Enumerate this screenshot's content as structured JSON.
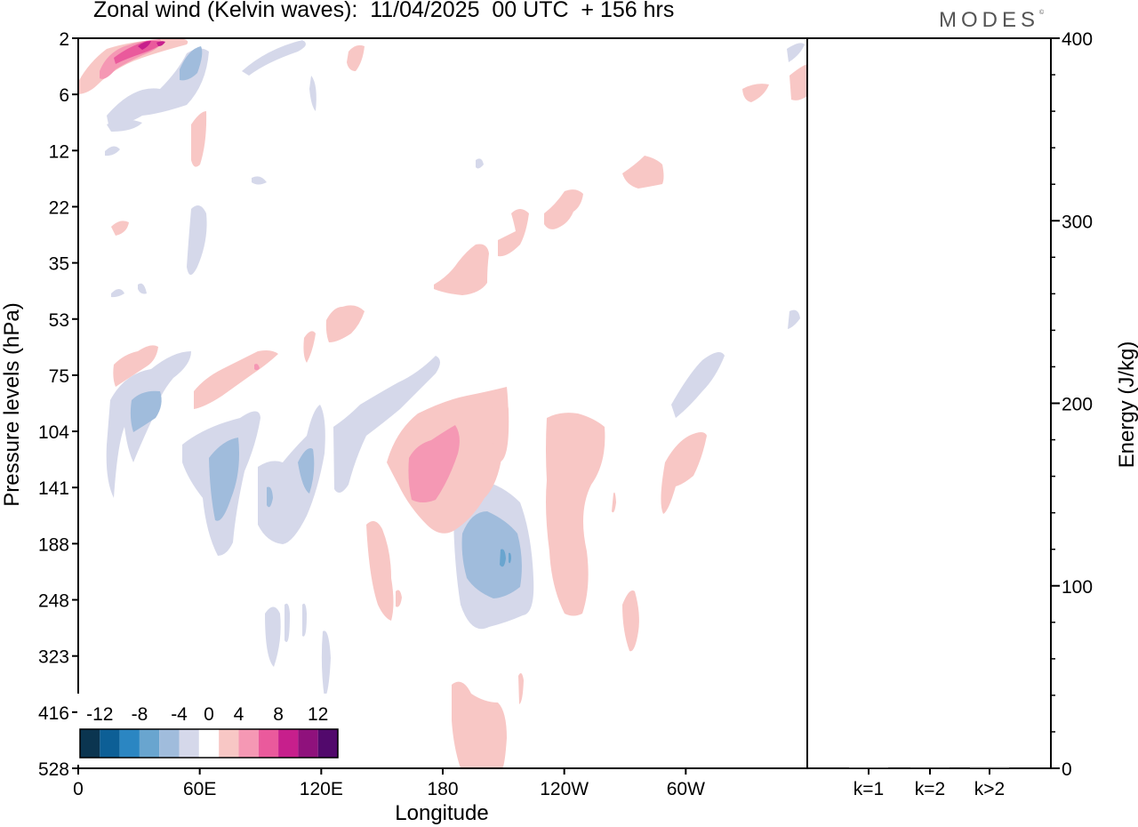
{
  "title": "Zonal wind (Kelvin waves):  11/04/2025  00 UTC  + 156 hrs",
  "brand": {
    "text": "MODES",
    "mark": "©"
  },
  "chart_data": [
    {
      "type": "heatmap",
      "title": "Zonal wind (Kelvin waves):  11/04/2025  00 UTC  + 156 hrs",
      "xlabel": "Longitude",
      "ylabel": "Pressure levels (hPa)",
      "x_ticks": [
        "0",
        "60E",
        "120E",
        "180",
        "120W",
        "60W"
      ],
      "x_tick_values": [
        0,
        60,
        120,
        180,
        240,
        300
      ],
      "xlim": [
        0,
        360
      ],
      "y_ticks": [
        "2",
        "6",
        "12",
        "22",
        "35",
        "53",
        "75",
        "104",
        "141",
        "188",
        "248",
        "323",
        "416",
        "528"
      ],
      "y_scale": "model levels (top 2 hPa, bottom 528 hPa)",
      "colorbar": {
        "labels": [
          "-12",
          "-8",
          "-4",
          "0",
          "4",
          "8",
          "12"
        ],
        "levels": [
          -14,
          -12,
          -10,
          -8,
          -6,
          -4,
          -2,
          2,
          4,
          6,
          8,
          10,
          12,
          14
        ],
        "colors": [
          "#0b3550",
          "#0d5f96",
          "#2b86c2",
          "#69a5cf",
          "#a0bcdc",
          "#d5d8ea",
          "#ffffff",
          "#f8c7c5",
          "#f598b4",
          "#ea5a9c",
          "#c71f8c",
          "#8f117c",
          "#52096c"
        ],
        "position": "bottom-left"
      },
      "features": [
        {
          "sign": "positive",
          "level": 8,
          "lon": 27,
          "p_hPa": 3,
          "note": "strongest positive anomaly near top-left"
        },
        {
          "sign": "negative",
          "level": -6,
          "lon": 195,
          "p_hPa": 190
        },
        {
          "sign": "positive",
          "level": 6,
          "lon": 172,
          "p_hPa": 135
        },
        {
          "sign": "negative",
          "level": -6,
          "lon": 60,
          "p_hPa": 150
        },
        {
          "sign": "negative",
          "level": -6,
          "lon": 30,
          "p_hPa": 95
        }
      ]
    },
    {
      "type": "bar",
      "categories": [
        "k=1",
        "k=2",
        "k>2"
      ],
      "values": [
        0.3,
        0.2,
        0.6
      ],
      "ylabel": "Energy (J/kg)",
      "ylim": [
        0,
        400
      ],
      "y_ticks": [
        "0",
        "100",
        "200",
        "300",
        "400"
      ],
      "y_tick_values": [
        0,
        100,
        200,
        300,
        400
      ],
      "y_axis_side": "right"
    }
  ]
}
